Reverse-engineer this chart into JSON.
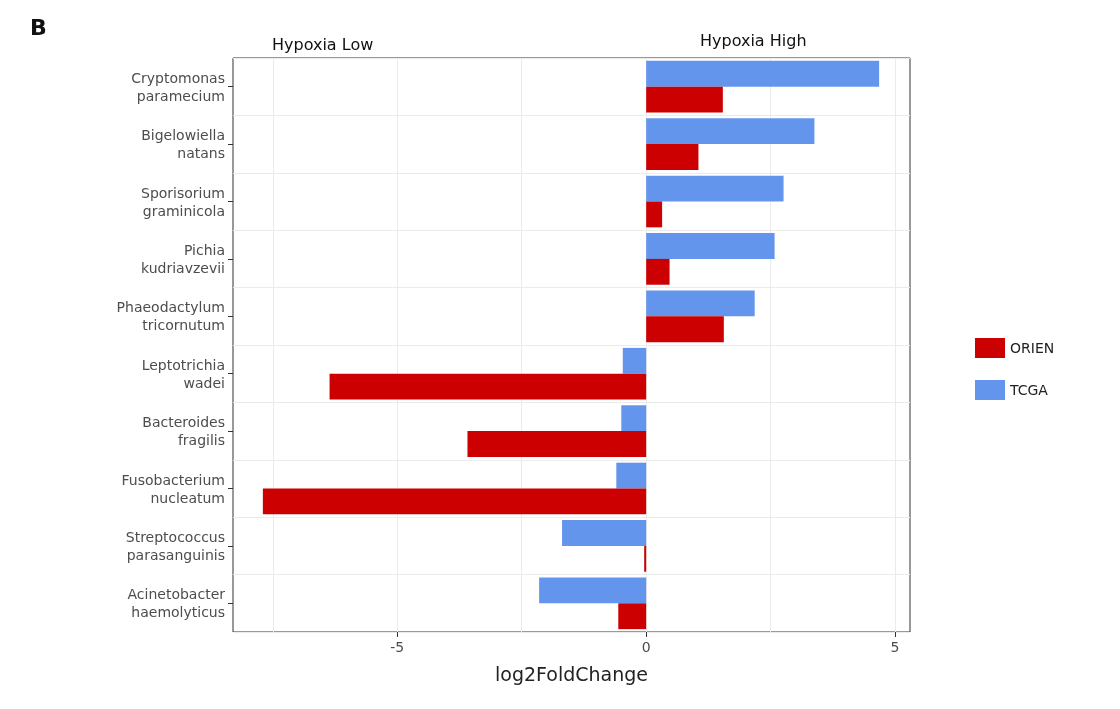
{
  "chart_data": {
    "type": "bar",
    "orientation": "horizontal",
    "xlabel": "log2FoldChange",
    "annotations": [
      "B",
      "Hypoxia Low",
      "Hypoxia High"
    ],
    "categories": [
      "Cryptomonas paramecium",
      "Bigelowiella natans",
      "Sporisorium graminicola",
      "Pichia kudriavzevii",
      "Phaeodactylum tricornutum",
      "Leptotrichia wadei",
      "Bacteroides fragilis",
      "Fusobacterium nucleatum",
      "Streptococcus parasanguinis",
      "Acinetobacter haemolyticus"
    ],
    "series": [
      {
        "name": "ORIEN",
        "color": "#cc0000",
        "values": [
          1.54,
          1.05,
          0.32,
          0.47,
          1.56,
          -6.36,
          -3.59,
          -7.7,
          -0.04,
          -0.56
        ]
      },
      {
        "name": "TCGA",
        "color": "#6495ed",
        "values": [
          4.68,
          3.38,
          2.76,
          2.58,
          2.18,
          -0.47,
          -0.5,
          -0.6,
          -1.69,
          -2.15
        ]
      }
    ],
    "xlim": [
      -8.3,
      5.3
    ],
    "xticks": [
      {
        "value": -7.5,
        "label": null
      },
      -5,
      {
        "value": -2.5,
        "label": null
      },
      0,
      {
        "value": 2.5,
        "label": null
      },
      5
    ],
    "grid": true,
    "legend": "right"
  }
}
